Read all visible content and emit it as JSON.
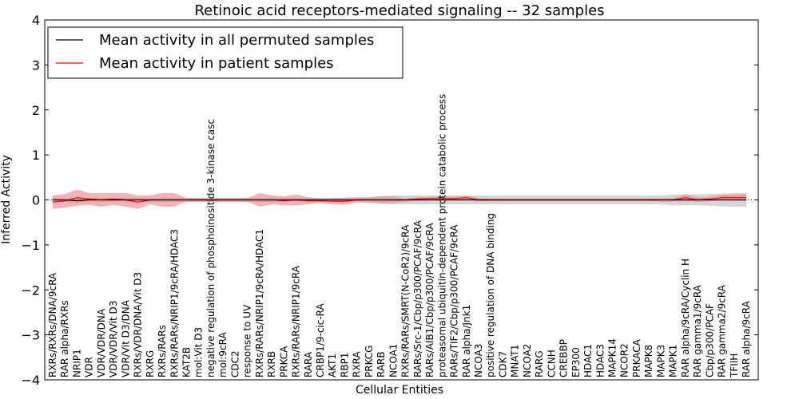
{
  "chart_data": {
    "type": "line",
    "title": "Retinoic acid receptors-mediated signaling -- 32 samples",
    "xlabel": "Cellular Entities",
    "ylabel": "Inferred Activity",
    "ylim": [
      -4,
      4
    ],
    "yticks": [
      "−4",
      "−3",
      "−2",
      "−1",
      "0",
      "1",
      "2",
      "3",
      "4"
    ],
    "legend": {
      "position": "top-left",
      "entries": [
        {
          "label": "Mean activity in all permuted samples",
          "color": "#000000"
        },
        {
          "label": "Mean activity in patient samples",
          "color": "#ff0000"
        }
      ]
    },
    "colors": {
      "permuted_line": "#000000",
      "patient_line": "#ff0000",
      "permuted_band": "#c8c8c8",
      "patient_band": "#f08080"
    },
    "categories": [
      "RXRs/RXRs/DNA/9cRA",
      "RAR alpha/RXRs",
      "NRIP1",
      "VDR",
      "VDR/VDR/DNA",
      "VDR/VDR/Vit D3",
      "VDR/Vit D3/DNA",
      "RXRs/VDR/DNA/Vit D3",
      "RXRG",
      "RXRs/RARs",
      "RXRs/RARs/NRIP1/9cRA/HDAC3",
      "KAT2B",
      "mol:Vit D3",
      "negative regulation of phosphoinositide 3-kinase casc",
      "mol:9cRA",
      "CDC2",
      "response to UV",
      "RXRs/RARs/NRIP1/9cRA/HDAC1",
      "RXRB",
      "PRKCA",
      "RXRs/RARs/NRIP1/9cRA",
      "RARA",
      "CRBP1/9-cic-RA",
      "AKT1",
      "RBP1",
      "RXRA",
      "PRKCG",
      "RARB",
      "NCOA1",
      "RXRs/RARs/SMRT(N-CoR2)/9cRA",
      "RARs/Src-1/Cbp/p300/PCAF/9cRA",
      "RARs/AIB1/Cbp/p300/PCAF/9cRA",
      "proteasomal ubiquitin-dependent protein catabolic process",
      "RARs/TIF2/Cbp/p300/PCAF/9cRA",
      "RAR alpha/Jnk1",
      "NCOA3",
      "positive regulation of DNA binding",
      "CDK7",
      "MNAT1",
      "NCOA2",
      "RARG",
      "CCNH",
      "CREBBP",
      "EP300",
      "HDAC1",
      "HDAC3",
      "MAPK14",
      "NCOR2",
      "PRKACA",
      "MAPK8",
      "MAPK3",
      "MAPK1",
      "RAR alpha/9cRA/Cyclin H",
      "RAR gamma1/9cRA",
      "Cbp/p300/PCAF",
      "RAR gamma2/9cRA",
      "TFIIH",
      "RAR alpha/9cRA"
    ],
    "series": [
      {
        "name": "Mean activity in all permuted samples",
        "values": [
          0.0,
          0.0,
          -0.02,
          0.0,
          0.0,
          0.0,
          0.0,
          0.0,
          0.0,
          0.0,
          0.0,
          0.0,
          0.0,
          0.0,
          0.0,
          0.0,
          0.0,
          0.0,
          0.0,
          0.0,
          0.0,
          0.0,
          0.0,
          0.0,
          0.0,
          0.0,
          0.0,
          0.0,
          0.0,
          0.0,
          0.0,
          0.0,
          0.0,
          0.0,
          0.0,
          0.0,
          0.0,
          0.0,
          0.0,
          0.0,
          0.0,
          0.0,
          0.0,
          0.0,
          0.0,
          0.0,
          0.0,
          0.0,
          0.0,
          0.0,
          0.0,
          0.0,
          0.0,
          0.0,
          0.0,
          0.0,
          0.0,
          0.0
        ],
        "band": [
          0.05,
          0.05,
          0.05,
          0.05,
          0.05,
          0.05,
          0.05,
          0.05,
          0.05,
          0.05,
          0.05,
          0.05,
          0.05,
          0.05,
          0.05,
          0.05,
          0.05,
          0.05,
          0.05,
          0.05,
          0.05,
          0.05,
          0.05,
          0.05,
          0.05,
          0.05,
          0.05,
          0.08,
          0.1,
          0.1,
          0.1,
          0.1,
          0.1,
          0.1,
          0.1,
          0.1,
          0.1,
          0.1,
          0.1,
          0.1,
          0.1,
          0.1,
          0.1,
          0.1,
          0.1,
          0.1,
          0.1,
          0.1,
          0.1,
          0.1,
          0.1,
          0.12,
          0.12,
          0.12,
          0.13,
          0.14,
          0.15,
          0.15
        ]
      },
      {
        "name": "Mean activity in patient samples",
        "values": [
          -0.05,
          -0.02,
          0.05,
          0.02,
          0.0,
          0.02,
          0.0,
          -0.05,
          0.0,
          0.0,
          0.0,
          0.0,
          0.0,
          0.0,
          0.0,
          0.0,
          0.0,
          0.0,
          0.0,
          -0.02,
          0.0,
          -0.02,
          -0.02,
          -0.03,
          -0.03,
          0.0,
          0.0,
          0.0,
          0.0,
          0.0,
          0.02,
          0.03,
          0.03,
          0.03,
          0.05,
          0.0,
          0.0,
          0.0,
          0.0,
          0.0,
          0.0,
          0.0,
          0.0,
          0.0,
          0.0,
          0.0,
          0.0,
          0.0,
          0.0,
          0.0,
          0.0,
          0.0,
          0.05,
          0.0,
          0.02,
          0.05,
          0.05,
          0.05
        ],
        "band": [
          0.15,
          0.15,
          0.18,
          0.13,
          0.15,
          0.13,
          0.15,
          0.15,
          0.1,
          0.15,
          0.15,
          0.04,
          0.04,
          0.04,
          0.04,
          0.04,
          0.04,
          0.15,
          0.1,
          0.1,
          0.12,
          0.08,
          0.05,
          0.07,
          0.08,
          0.06,
          0.06,
          0.08,
          0.07,
          0.04,
          0.04,
          0.04,
          0.04,
          0.04,
          0.04,
          0.04,
          0.03,
          0.03,
          0.03,
          0.03,
          0.03,
          0.03,
          0.03,
          0.03,
          0.03,
          0.03,
          0.03,
          0.03,
          0.03,
          0.03,
          0.04,
          0.04,
          0.08,
          0.05,
          0.05,
          0.06,
          0.07,
          0.08
        ]
      }
    ]
  }
}
